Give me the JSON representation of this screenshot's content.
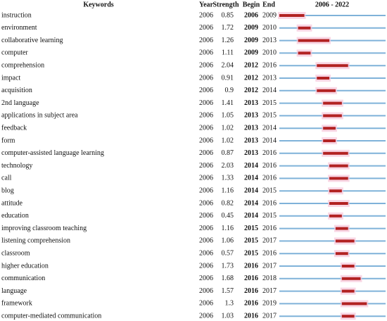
{
  "table": {
    "headers": [
      "Keywords",
      "Year",
      "Strength",
      "Begin",
      "End"
    ],
    "timeline": {
      "label": "2006 - 2022",
      "start": 2006,
      "end": 2022
    },
    "rows": [
      [
        "instruction",
        2006,
        0.85,
        2006,
        2009
      ],
      [
        "environment",
        2006,
        1.72,
        2009,
        2010
      ],
      [
        "collaborative learning",
        2006,
        1.26,
        2009,
        2013
      ],
      [
        "computer",
        2006,
        1.11,
        2009,
        2010
      ],
      [
        "comprehension",
        2006,
        2.04,
        2012,
        2016
      ],
      [
        "impact",
        2006,
        0.91,
        2012,
        2013
      ],
      [
        "acquisition",
        2006,
        0.9,
        2012,
        2014
      ],
      [
        "2nd language",
        2006,
        1.41,
        2013,
        2015
      ],
      [
        "applications in subject area",
        2006,
        1.05,
        2013,
        2015
      ],
      [
        "feedback",
        2006,
        1.02,
        2013,
        2014
      ],
      [
        "form",
        2006,
        1.02,
        2013,
        2014
      ],
      [
        "computer-assisted language learning",
        2006,
        0.87,
        2013,
        2016
      ],
      [
        "technology",
        2006,
        2.03,
        2014,
        2016
      ],
      [
        "call",
        2006,
        1.33,
        2014,
        2016
      ],
      [
        "blog",
        2006,
        1.16,
        2014,
        2015
      ],
      [
        "attitude",
        2006,
        0.82,
        2014,
        2016
      ],
      [
        "education",
        2006,
        0.45,
        2014,
        2015
      ],
      [
        "improving classroom teaching",
        2006,
        1.16,
        2015,
        2016
      ],
      [
        "listening comprehension",
        2006,
        1.06,
        2015,
        2017
      ],
      [
        "classroom",
        2006,
        0.57,
        2015,
        2016
      ],
      [
        "higher education",
        2006,
        1.73,
        2016,
        2017
      ],
      [
        "communication",
        2006,
        1.68,
        2016,
        2018
      ],
      [
        "language",
        2006,
        1.57,
        2016,
        2017
      ],
      [
        "framework",
        2006,
        1.3,
        2016,
        2019
      ],
      [
        "computer-mediated communication",
        2006,
        1.03,
        2016,
        2017
      ]
    ]
  }
}
